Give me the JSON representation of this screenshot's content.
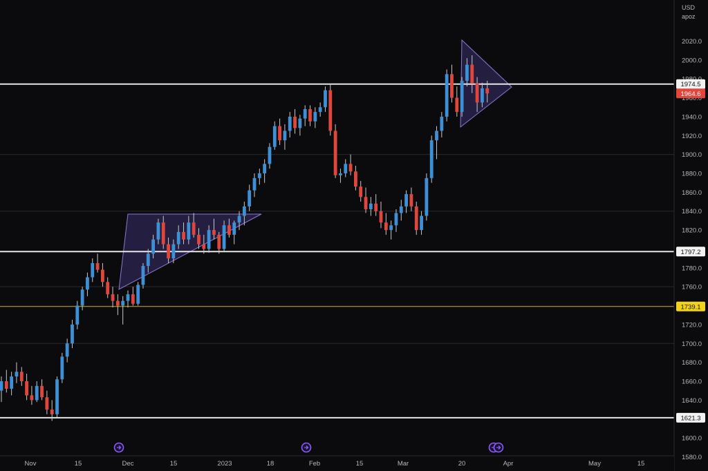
{
  "chart_data": {
    "type": "candlestick",
    "currency": "USD",
    "header_sub": "apoz",
    "colors": {
      "background": "#0b0b0d",
      "up": "#3d8fd6",
      "down": "#e0463b",
      "wick": "#c9c9c9",
      "grid": "#2a2a2e",
      "level_white": "#e6e6e6",
      "level_yellow": "#d6b400",
      "current_price_badge": "#e0463b",
      "pattern_fill": "#3b2f6b",
      "pattern_stroke": "#8a7ad6",
      "event_marker": "#8b5cf6"
    },
    "y_axis": {
      "min": 1580,
      "max": 2030,
      "ticks": [
        "1580.0",
        "1600.0",
        "1620.0",
        "1640.0",
        "1660.0",
        "1680.0",
        "1700.0",
        "1720.0",
        "1740.0",
        "1760.0",
        "1780.0",
        "1800.0",
        "1820.0",
        "1840.0",
        "1860.0",
        "1880.0",
        "1900.0",
        "1920.0",
        "1940.0",
        "1960.0",
        "1980.0",
        "2000.0",
        "2020.0"
      ]
    },
    "x_axis": {
      "labels": [
        "Nov",
        "15",
        "Dec",
        "15",
        "2023",
        "18",
        "Feb",
        "15",
        "Mar",
        "20",
        "Apr",
        "May",
        "15"
      ]
    },
    "levels": [
      {
        "label": "1974.5",
        "value": 1974.5,
        "style": "white"
      },
      {
        "label": "1797.2",
        "value": 1797.2,
        "style": "white"
      },
      {
        "label": "1739.1",
        "value": 1739.1,
        "style": "yellow"
      },
      {
        "label": "1621.3",
        "value": 1621.3,
        "style": "white"
      }
    ],
    "current_price": {
      "label": "1964.6",
      "value": 1964.6
    },
    "candles": [
      [
        1650,
        1665,
        1638,
        1660
      ],
      [
        1660,
        1672,
        1648,
        1652
      ],
      [
        1652,
        1670,
        1645,
        1665
      ],
      [
        1665,
        1680,
        1658,
        1670
      ],
      [
        1670,
        1675,
        1655,
        1660
      ],
      [
        1660,
        1668,
        1640,
        1645
      ],
      [
        1645,
        1655,
        1635,
        1640
      ],
      [
        1640,
        1660,
        1638,
        1655
      ],
      [
        1655,
        1662,
        1640,
        1643
      ],
      [
        1643,
        1650,
        1625,
        1630
      ],
      [
        1630,
        1640,
        1618,
        1625
      ],
      [
        1625,
        1665,
        1622,
        1662
      ],
      [
        1662,
        1690,
        1658,
        1686
      ],
      [
        1686,
        1705,
        1680,
        1700
      ],
      [
        1700,
        1725,
        1695,
        1720
      ],
      [
        1720,
        1745,
        1715,
        1740
      ],
      [
        1740,
        1760,
        1735,
        1757
      ],
      [
        1757,
        1775,
        1750,
        1770
      ],
      [
        1770,
        1790,
        1765,
        1785
      ],
      [
        1785,
        1795,
        1775,
        1778
      ],
      [
        1778,
        1785,
        1760,
        1765
      ],
      [
        1765,
        1770,
        1748,
        1752
      ],
      [
        1752,
        1760,
        1738,
        1745
      ],
      [
        1745,
        1752,
        1730,
        1740
      ],
      [
        1740,
        1750,
        1720,
        1745
      ],
      [
        1745,
        1756,
        1738,
        1752
      ],
      [
        1752,
        1760,
        1740,
        1742
      ],
      [
        1742,
        1765,
        1740,
        1762
      ],
      [
        1762,
        1785,
        1758,
        1782
      ],
      [
        1782,
        1800,
        1775,
        1795
      ],
      [
        1795,
        1815,
        1790,
        1810
      ],
      [
        1810,
        1832,
        1805,
        1828
      ],
      [
        1828,
        1835,
        1800,
        1805
      ],
      [
        1805,
        1812,
        1785,
        1790
      ],
      [
        1790,
        1810,
        1785,
        1805
      ],
      [
        1805,
        1825,
        1800,
        1818
      ],
      [
        1818,
        1828,
        1805,
        1810
      ],
      [
        1810,
        1835,
        1805,
        1828
      ],
      [
        1828,
        1838,
        1812,
        1815
      ],
      [
        1815,
        1822,
        1800,
        1805
      ],
      [
        1805,
        1815,
        1795,
        1800
      ],
      [
        1800,
        1825,
        1796,
        1820
      ],
      [
        1820,
        1832,
        1810,
        1815
      ],
      [
        1815,
        1818,
        1795,
        1800
      ],
      [
        1800,
        1830,
        1798,
        1825
      ],
      [
        1825,
        1832,
        1812,
        1815
      ],
      [
        1815,
        1830,
        1805,
        1828
      ],
      [
        1828,
        1840,
        1820,
        1835
      ],
      [
        1835,
        1850,
        1825,
        1845
      ],
      [
        1845,
        1868,
        1840,
        1862
      ],
      [
        1862,
        1880,
        1855,
        1875
      ],
      [
        1875,
        1885,
        1868,
        1880
      ],
      [
        1880,
        1895,
        1870,
        1890
      ],
      [
        1890,
        1912,
        1885,
        1908
      ],
      [
        1908,
        1935,
        1905,
        1930
      ],
      [
        1930,
        1938,
        1910,
        1915
      ],
      [
        1915,
        1932,
        1905,
        1925
      ],
      [
        1925,
        1945,
        1918,
        1940
      ],
      [
        1940,
        1948,
        1922,
        1928
      ],
      [
        1928,
        1942,
        1920,
        1938
      ],
      [
        1938,
        1952,
        1930,
        1948
      ],
      [
        1948,
        1952,
        1930,
        1935
      ],
      [
        1935,
        1950,
        1928,
        1945
      ],
      [
        1945,
        1955,
        1940,
        1950
      ],
      [
        1950,
        1972,
        1945,
        1968
      ],
      [
        1968,
        1975,
        1920,
        1925
      ],
      [
        1925,
        1932,
        1875,
        1878
      ],
      [
        1878,
        1885,
        1870,
        1880
      ],
      [
        1880,
        1895,
        1876,
        1890
      ],
      [
        1890,
        1900,
        1878,
        1882
      ],
      [
        1882,
        1888,
        1862,
        1866
      ],
      [
        1866,
        1872,
        1850,
        1855
      ],
      [
        1855,
        1865,
        1838,
        1842
      ],
      [
        1842,
        1855,
        1835,
        1848
      ],
      [
        1848,
        1858,
        1835,
        1840
      ],
      [
        1840,
        1850,
        1822,
        1828
      ],
      [
        1828,
        1838,
        1815,
        1820
      ],
      [
        1820,
        1830,
        1810,
        1825
      ],
      [
        1825,
        1842,
        1818,
        1838
      ],
      [
        1838,
        1852,
        1830,
        1845
      ],
      [
        1845,
        1862,
        1838,
        1858
      ],
      [
        1858,
        1865,
        1840,
        1845
      ],
      [
        1845,
        1850,
        1815,
        1820
      ],
      [
        1820,
        1840,
        1815,
        1835
      ],
      [
        1835,
        1880,
        1830,
        1875
      ],
      [
        1875,
        1920,
        1870,
        1915
      ],
      [
        1915,
        1930,
        1895,
        1925
      ],
      [
        1925,
        1945,
        1918,
        1940
      ],
      [
        1940,
        1990,
        1935,
        1985
      ],
      [
        1985,
        1995,
        1955,
        1960
      ],
      [
        1960,
        1972,
        1940,
        1945
      ],
      [
        1945,
        1982,
        1940,
        1978
      ],
      [
        1978,
        2002,
        1972,
        1995
      ],
      [
        1995,
        2005,
        1965,
        1975
      ],
      [
        1975,
        1982,
        1945,
        1955
      ],
      [
        1955,
        1976,
        1950,
        1970
      ],
      [
        1970,
        1978,
        1955,
        1964.6
      ]
    ],
    "patterns": [
      {
        "name": "ascending-triangle",
        "vertices": [
          [
            21,
            1837
          ],
          [
            48,
            1837
          ],
          [
            21,
            1758
          ]
        ]
      },
      {
        "name": "symmetrical-triangle",
        "vertices": [
          [
            88,
            2020
          ],
          [
            98,
            1974.5
          ],
          [
            88,
            1935
          ]
        ]
      }
    ],
    "event_markers": [
      22,
      57,
      91,
      92
    ]
  }
}
